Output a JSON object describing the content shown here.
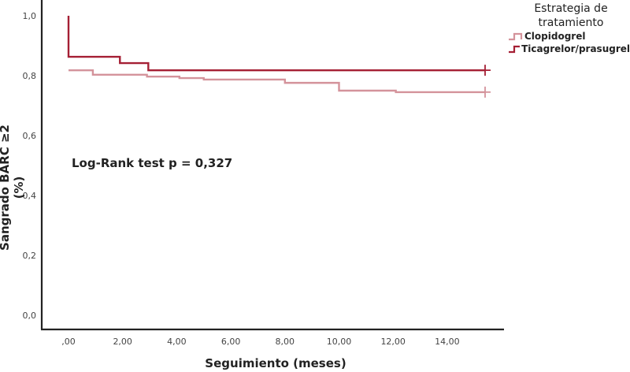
{
  "chart_data": {
    "type": "line",
    "subtype": "kaplan-meier-step",
    "title": "",
    "xlabel": "Seguimiento (meses)",
    "ylabel": "Sangrado BARC ≥2 (%)",
    "xlim": [
      -0.9,
      17.5
    ],
    "ylim": [
      -0.05,
      1.05
    ],
    "x_ticks": [
      ",00",
      "2,00",
      "4,00",
      "6,00",
      "8,00",
      "10,00",
      "12,00",
      "14,00"
    ],
    "x_tick_values": [
      0,
      2,
      4,
      6,
      8,
      10,
      12,
      14
    ],
    "y_ticks": [
      "0,0",
      "0,2",
      "0,4",
      "0,6",
      "0,8",
      "1,0"
    ],
    "y_tick_values": [
      0,
      0.2,
      0.4,
      0.6,
      0.8,
      1.0
    ],
    "grid": false,
    "legend": {
      "title": "Estrategia de tratamiento",
      "position": "top-right",
      "entries": [
        "Clopidogrel",
        "Ticagrelor/prasugrel"
      ]
    },
    "annotations": [
      "Log-Rank test p = 0,327"
    ],
    "series": [
      {
        "name": "Clopidogrel",
        "color": "#d4939b",
        "x": [
          0,
          0.9,
          2.9,
          4.1,
          5.0,
          8.0,
          10.0,
          12.1,
          15.4
        ],
        "y": [
          0.818,
          0.803,
          0.797,
          0.792,
          0.787,
          0.776,
          0.75,
          0.745,
          0.745
        ],
        "censored_end": {
          "x": 15.4,
          "y": 0.745
        }
      },
      {
        "name": "Ticagrelor/prasugrel",
        "color": "#a51f34",
        "x": [
          0,
          0.0,
          1.9,
          2.95,
          15.4
        ],
        "y": [
          1.0,
          0.863,
          0.842,
          0.818,
          0.818
        ],
        "censored_end": {
          "x": 15.4,
          "y": 0.818
        }
      }
    ]
  },
  "labels": {
    "legend_title_1": "Estrategia de",
    "legend_title_2": "tratamiento",
    "legend_clopidogrel": "Clopidogrel",
    "legend_ticagrelor": "Ticagrelor/prasugrel",
    "annotation": "Log-Rank test p = 0,327",
    "ylabel": "Sangrado BARC ≥2 (%)",
    "xlabel": "Seguimiento (meses)"
  },
  "colors": {
    "clopidogrel": "#d4939b",
    "ticagrelor": "#a51f34",
    "axis": "#222222"
  }
}
